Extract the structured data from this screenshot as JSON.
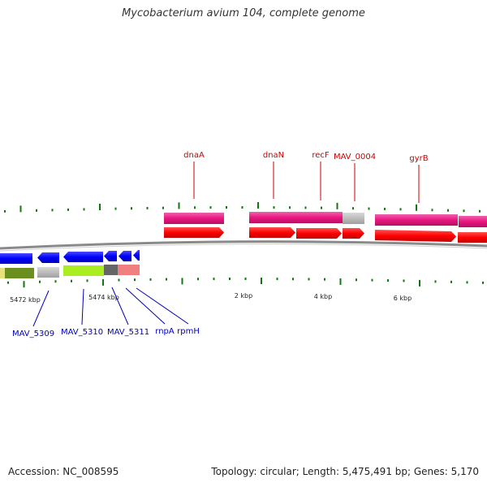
{
  "title": "Mycobacterium avium 104, complete genome",
  "footer": {
    "accession": "Accession: NC_008595",
    "stats": "Topology: circular; Length: 5,475,491 bp; Genes: 5,170"
  },
  "ticks": {
    "upper_labels": [],
    "lower_labels": [
      "5472 kbp",
      "5474 kbp",
      "2 kbp",
      "4 kbp",
      "6 kbp"
    ]
  },
  "genes_forward": [
    {
      "name": "dnaA"
    },
    {
      "name": "dnaN"
    },
    {
      "name": "recF"
    },
    {
      "name": "MAV_0004"
    },
    {
      "name": "gyrB"
    }
  ],
  "genes_reverse": [
    {
      "name": "MAV_5309"
    },
    {
      "name": "MAV_5310"
    },
    {
      "name": "MAV_5311"
    },
    {
      "name": "rnpA"
    },
    {
      "name": "rpmH"
    }
  ],
  "colors": {
    "forward_label": "#cc0000",
    "reverse_label": "#0000bb",
    "cds_forward": "#ff0000",
    "gene_forward": "#e8177f",
    "cds_reverse": "#0000ff",
    "tick": "#117711",
    "backbone": "#888888"
  }
}
